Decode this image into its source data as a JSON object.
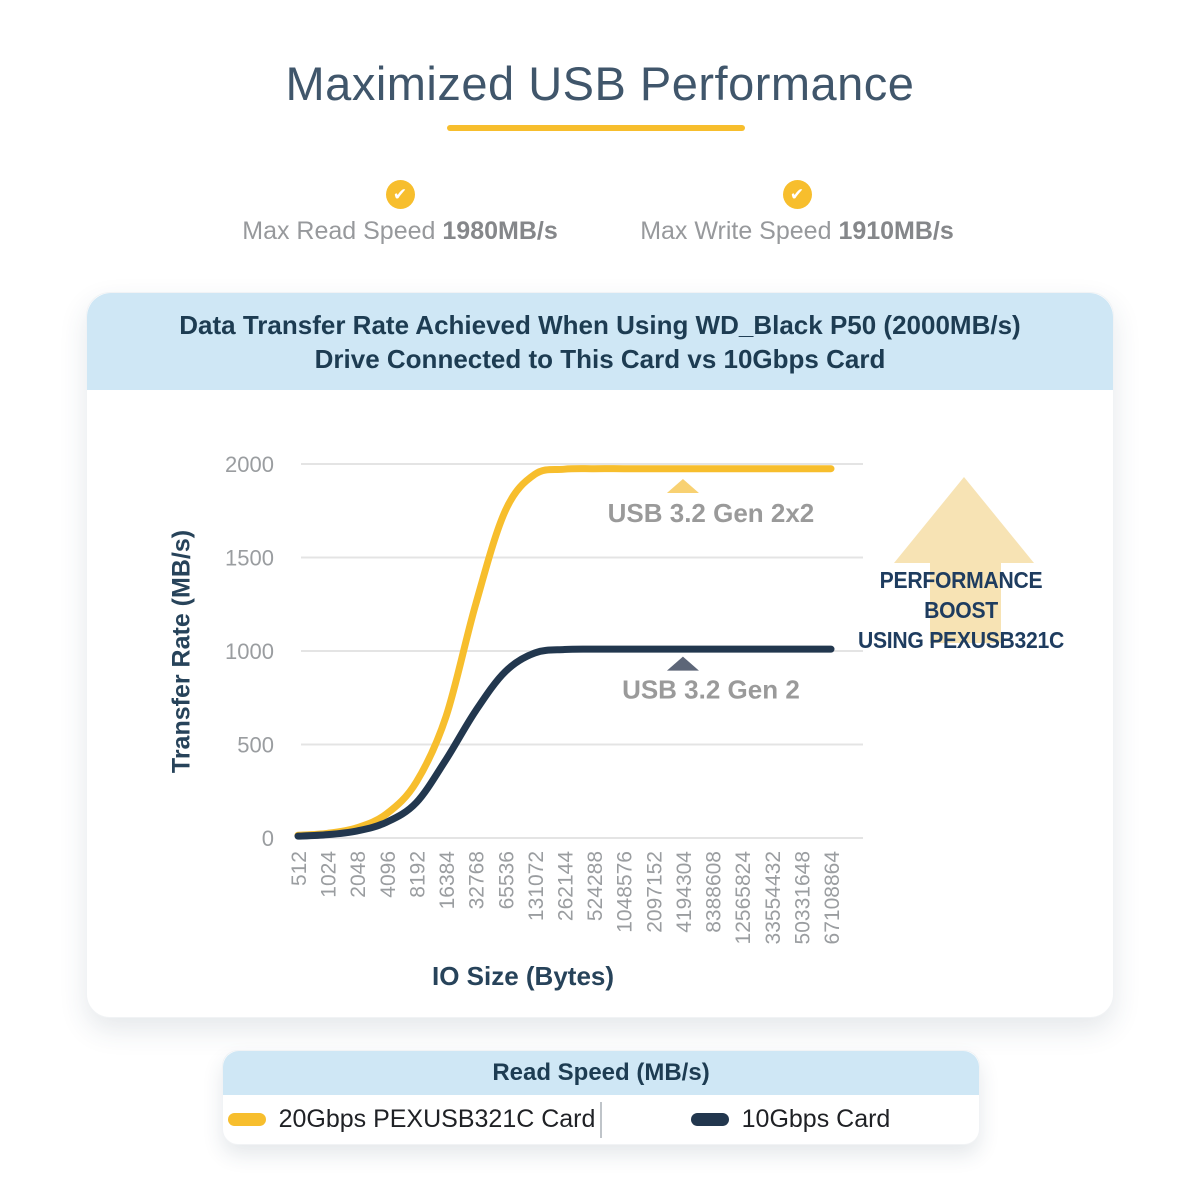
{
  "page": {
    "title": "Maximized USB Performance"
  },
  "colors": {
    "accent_yellow": "#f7be2d",
    "navy": "#22374e",
    "panel_blue": "#cfe7f5",
    "pale_yellow": "#f7e3b4"
  },
  "metrics": [
    {
      "label": "Max Read Speed",
      "value": "1980MB/s"
    },
    {
      "label": "Max Write Speed",
      "value": "1910MB/s"
    }
  ],
  "chart_card": {
    "header_lines": [
      "Data Transfer Rate Achieved When Using WD_Black P50 (2000MB/s)",
      "Drive Connected to This Card vs 10Gbps Card"
    ]
  },
  "chart_data": {
    "type": "line",
    "title": "Data Transfer Rate Achieved When Using WD_Black P50 (2000MB/s) Drive Connected to This Card vs 10Gbps Card",
    "xlabel": "IO Size (Bytes)",
    "ylabel": "Transfer Rate (MB/s)",
    "categories": [
      "512",
      "1024",
      "2048",
      "4096",
      "8192",
      "16384",
      "32768",
      "65536",
      "131072",
      "262144",
      "524288",
      "1048576",
      "2097152",
      "4194304",
      "8388608",
      "12565824",
      "33554432",
      "50331648",
      "67108864"
    ],
    "series": [
      {
        "name": "20Gbps PEXUSB321C Card",
        "color": "#f7be2d",
        "values": [
          15,
          25,
          55,
          130,
          300,
          650,
          1250,
          1750,
          1945,
          1972,
          1975,
          1975,
          1975,
          1975,
          1975,
          1975,
          1975,
          1975,
          1975
        ]
      },
      {
        "name": "10Gbps Card",
        "color": "#22374e",
        "values": [
          10,
          18,
          38,
          85,
          190,
          420,
          680,
          890,
          990,
          1008,
          1010,
          1010,
          1010,
          1010,
          1010,
          1010,
          1010,
          1010,
          1010
        ]
      }
    ],
    "ylim": [
      0,
      2000
    ],
    "yticks": [
      0,
      500,
      1000,
      1500,
      2000
    ],
    "grid": "horizontal",
    "legend_position": "bottom",
    "annotations": [
      {
        "text": "USB 3.2 Gen 2x2",
        "marker": "triangle-up",
        "marker_color": "#f8d172",
        "text_color": "#9a9a9a",
        "x_category": "4194304",
        "marker_value": 1920,
        "text_value": 1690
      },
      {
        "text": "USB 3.2 Gen 2",
        "marker": "triangle-up",
        "marker_color": "#5d6678",
        "text_color": "#9a9a9a",
        "x_category": "4194304",
        "marker_value": 970,
        "text_value": 745
      }
    ]
  },
  "performance_boost": {
    "lines": [
      "PERFORMANCE BOOST",
      "USING PEXUSB321C"
    ]
  },
  "legend": {
    "header": "Read Speed (MB/s)",
    "items": [
      {
        "label": "20Gbps PEXUSB321C Card",
        "color": "#f7be2d"
      },
      {
        "label": "10Gbps Card",
        "color": "#22374e"
      }
    ]
  }
}
